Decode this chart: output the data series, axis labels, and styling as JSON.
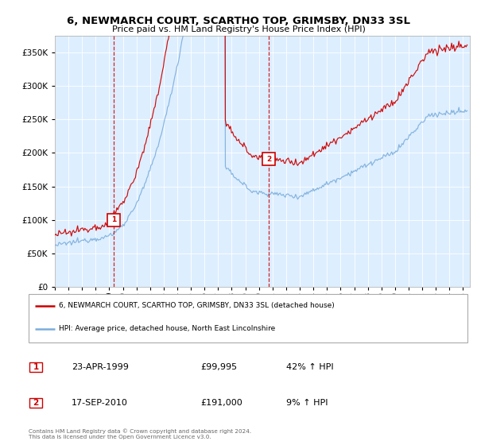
{
  "title": "6, NEWMARCH COURT, SCARTHO TOP, GRIMSBY, DN33 3SL",
  "subtitle": "Price paid vs. HM Land Registry's House Price Index (HPI)",
  "legend_line1": "6, NEWMARCH COURT, SCARTHO TOP, GRIMSBY, DN33 3SL (detached house)",
  "legend_line2": "HPI: Average price, detached house, North East Lincolnshire",
  "annotation1_date": "23-APR-1999",
  "annotation1_price": "£99,995",
  "annotation1_hpi": "42% ↑ HPI",
  "annotation2_date": "17-SEP-2010",
  "annotation2_price": "£191,000",
  "annotation2_hpi": "9% ↑ HPI",
  "footnote": "Contains HM Land Registry data © Crown copyright and database right 2024.\nThis data is licensed under the Open Government Licence v3.0.",
  "ylim": [
    0,
    375000
  ],
  "yticks": [
    0,
    50000,
    100000,
    150000,
    200000,
    250000,
    300000,
    350000
  ],
  "sale1_year": 1999.31,
  "sale1_price": 99995,
  "sale2_year": 2010.72,
  "sale2_price": 191000,
  "red_color": "#cc0000",
  "blue_color": "#7aaddb",
  "background_color": "#ddeeff",
  "xlim_start": 1995,
  "xlim_end": 2025.5
}
